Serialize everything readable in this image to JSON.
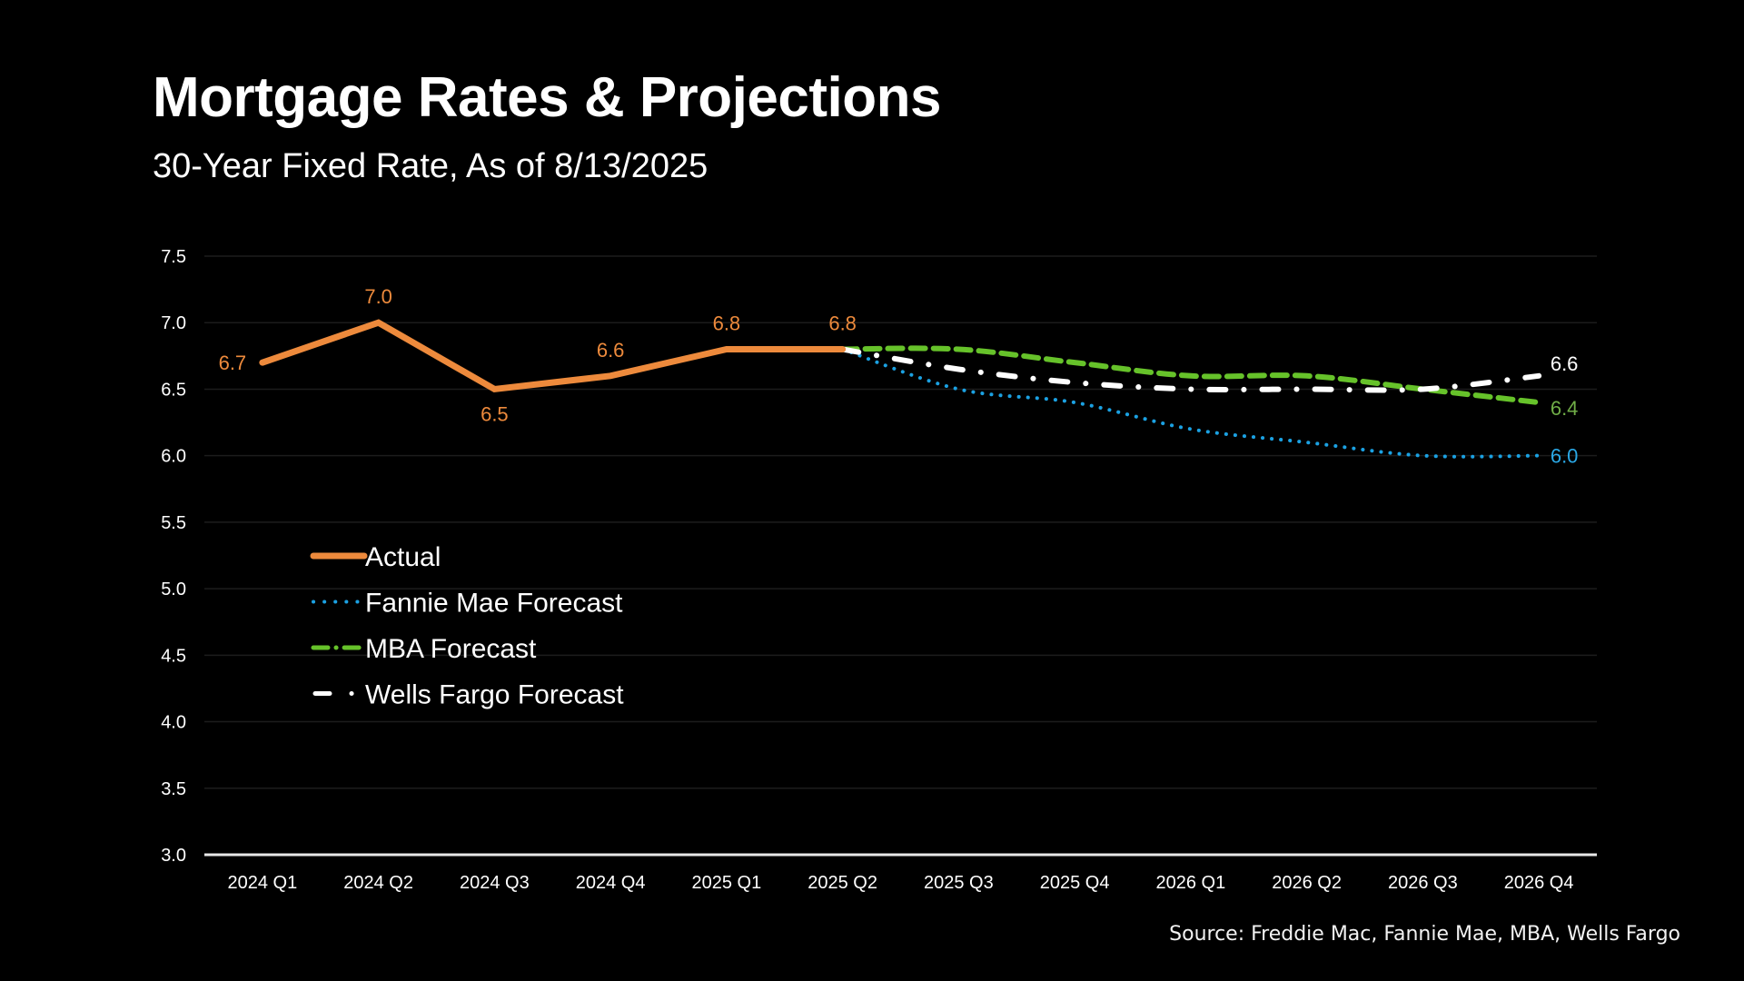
{
  "title": "Mortgage Rates & Projections",
  "subtitle": "30-Year Fixed Rate, As of 8/13/2025",
  "source": "Source: Freddie Mac, Fannie Mae, MBA, Wells Fargo",
  "chart_data": {
    "type": "line",
    "title": "Mortgage Rates & Projections",
    "subtitle": "30-Year Fixed Rate, As of 8/13/2025",
    "xlabel": "",
    "ylabel": "",
    "ylim": [
      3.0,
      7.5
    ],
    "yticks": [
      3.0,
      3.5,
      4.0,
      4.5,
      5.0,
      5.5,
      6.0,
      6.5,
      7.0,
      7.5
    ],
    "ytick_labels": [
      "3.0",
      "3.5",
      "4.0",
      "4.5",
      "5.0",
      "5.5",
      "6.0",
      "6.5",
      "7.0",
      "7.5"
    ],
    "grid": true,
    "legend_position": "center-left",
    "categories": [
      "2024 Q1",
      "2024 Q2",
      "2024 Q3",
      "2024 Q4",
      "2025 Q1",
      "2025 Q2",
      "2025 Q3",
      "2025 Q4",
      "2026 Q1",
      "2026 Q2",
      "2026 Q3",
      "2026 Q4"
    ],
    "series": [
      {
        "name": "Actual",
        "color": "#ED8A3C",
        "style": "solid",
        "values": [
          6.7,
          7.0,
          6.5,
          6.6,
          6.8,
          6.8,
          null,
          null,
          null,
          null,
          null,
          null
        ],
        "labels": [
          "6.7",
          "7.0",
          "6.5",
          "6.6",
          "6.8",
          "6.8",
          null,
          null,
          null,
          null,
          null,
          null
        ]
      },
      {
        "name": "Fannie Mae Forecast",
        "color": "#1BA1E2",
        "label_color": "#2AA8E6",
        "style": "dotted",
        "values": [
          null,
          null,
          null,
          null,
          null,
          6.8,
          6.5,
          6.4,
          6.2,
          6.1,
          6.0,
          6.0
        ],
        "labels": [
          null,
          null,
          null,
          null,
          null,
          null,
          null,
          null,
          null,
          null,
          null,
          "6.0"
        ]
      },
      {
        "name": "MBA Forecast",
        "color": "#66C22A",
        "label_color": "#70AD47",
        "style": "dashed",
        "values": [
          null,
          null,
          null,
          null,
          null,
          6.8,
          6.8,
          6.7,
          6.6,
          6.6,
          6.5,
          6.4
        ],
        "labels": [
          null,
          null,
          null,
          null,
          null,
          null,
          null,
          null,
          null,
          null,
          null,
          "6.4"
        ]
      },
      {
        "name": "Wells Fargo Forecast",
        "color": "#FFFFFF",
        "label_color": "#FFFFFF",
        "style": "dash-dot",
        "values": [
          null,
          null,
          null,
          null,
          null,
          6.8,
          6.65,
          6.55,
          6.5,
          6.5,
          6.5,
          6.6
        ],
        "labels": [
          null,
          null,
          null,
          null,
          null,
          null,
          null,
          null,
          null,
          null,
          null,
          "6.6"
        ]
      }
    ]
  }
}
